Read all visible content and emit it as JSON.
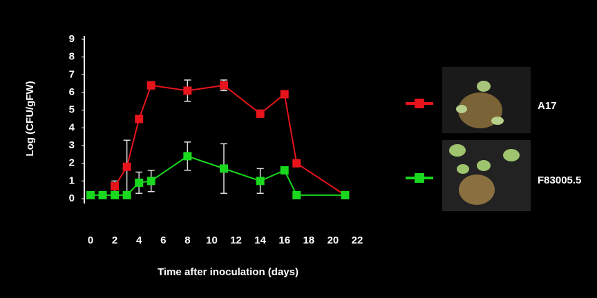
{
  "chart_data": {
    "type": "line",
    "xlabel": "Time after inoculation (days)",
    "ylabel": "Log (CFU/gFW)",
    "xlim": [
      0,
      22
    ],
    "xticks": [
      0,
      2,
      4,
      6,
      8,
      10,
      12,
      14,
      16,
      18,
      20,
      22
    ],
    "ylim": [
      0,
      9
    ],
    "yticks": [
      0,
      1,
      2,
      3,
      4,
      5,
      6,
      7,
      8,
      9
    ],
    "series": [
      {
        "name": "A17",
        "color": "#e8141b",
        "x": [
          2,
          3,
          4,
          5,
          8,
          11,
          14,
          16,
          17,
          21
        ],
        "values": [
          0.7,
          1.8,
          4.5,
          6.4,
          6.1,
          6.4,
          4.8,
          5.9,
          2.0,
          0.2
        ],
        "errors": [
          0.3,
          1.5,
          null,
          0.2,
          0.6,
          0.3,
          0.2,
          0.1,
          null,
          null
        ]
      },
      {
        "name": "F83005.5",
        "color": "#19d81e",
        "x": [
          0,
          1,
          2,
          3,
          4,
          5,
          8,
          11,
          14,
          16,
          17,
          21
        ],
        "values": [
          0.2,
          0.2,
          0.2,
          0.2,
          0.9,
          1.0,
          2.4,
          1.7,
          1.0,
          1.6,
          0.2,
          0.2
        ],
        "errors": [
          null,
          null,
          null,
          null,
          0.6,
          0.6,
          0.8,
          1.4,
          0.7,
          null,
          null,
          null
        ]
      }
    ]
  }
}
